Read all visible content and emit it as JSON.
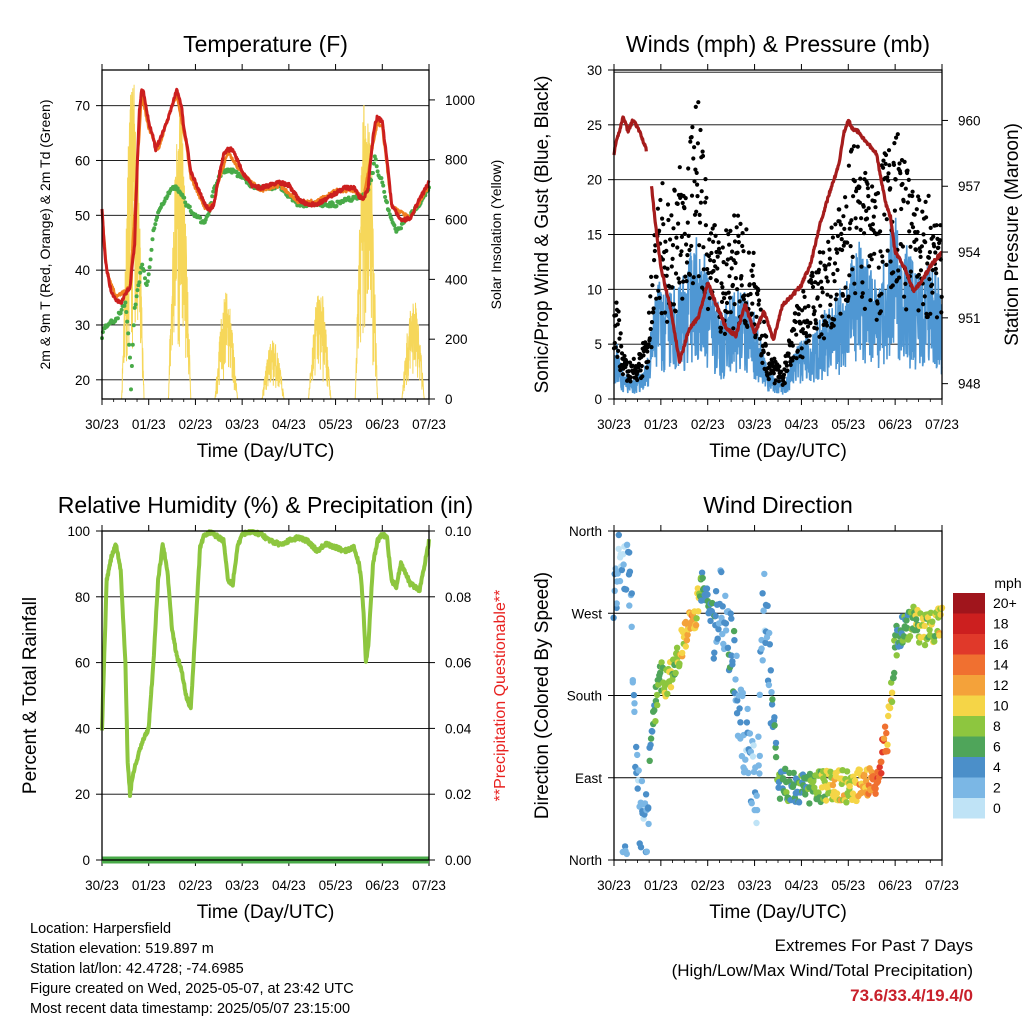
{
  "chart_data": [
    {
      "type": "line",
      "title": "Temperature (F)",
      "xlabel": "Time (Day/UTC)",
      "ylabel": "2m & 9m T (Red, Orange) & 2m Td (Green)",
      "ylabel_right": "Solar Insolation (Yellow)",
      "ylim": [
        16.5,
        76.5
      ],
      "ylim_right": [
        0,
        1100
      ],
      "yticks": [
        20,
        30,
        40,
        50,
        60,
        70
      ],
      "yticks_right": [
        0,
        200,
        400,
        600,
        800,
        1000
      ],
      "xticks": [
        "30/23",
        "01/23",
        "02/23",
        "03/23",
        "04/23",
        "05/23",
        "06/23",
        "07/23"
      ],
      "grid": true,
      "series": [
        {
          "name": "2m T",
          "color": "#cc1f1f",
          "x": [
            0,
            0.05,
            0.1,
            0.2,
            0.3,
            0.4,
            0.6,
            0.7,
            0.75,
            0.8,
            0.85,
            0.9,
            1.0,
            1.1,
            1.15,
            1.2,
            1.35,
            1.5,
            1.6,
            1.7,
            1.75,
            1.8,
            1.85,
            1.9,
            2.0,
            2.1,
            2.2,
            2.3,
            2.4,
            2.5,
            2.6,
            2.7,
            2.8,
            2.9,
            3.0,
            3.2,
            3.4,
            3.6,
            3.8,
            4.0,
            4.2,
            4.4,
            4.6,
            4.8,
            5.0,
            5.2,
            5.4,
            5.5,
            5.6,
            5.7,
            5.75,
            5.8,
            5.85,
            5.9,
            6.0,
            6.1,
            6.2,
            6.4,
            6.6,
            6.8,
            7.0
          ],
          "values": [
            51.5,
            44,
            40,
            36,
            34.5,
            34,
            37,
            45,
            58,
            69,
            73,
            72,
            67,
            64,
            62,
            63,
            66,
            70,
            73,
            70,
            66,
            64,
            61,
            58,
            56,
            54,
            52,
            51,
            52,
            57,
            61,
            62,
            62,
            60,
            58,
            55.5,
            55,
            55.5,
            56,
            55.5,
            53,
            52,
            52,
            53,
            54,
            55,
            55,
            53.5,
            53,
            55,
            60,
            64,
            67,
            68,
            67,
            60,
            52,
            49,
            49.5,
            53,
            56
          ]
        },
        {
          "name": "9m T",
          "color": "#f07f20",
          "x": [
            0,
            0.1,
            0.3,
            0.6,
            0.75,
            0.85,
            1.0,
            1.2,
            1.5,
            1.6,
            1.8,
            1.9,
            2.0,
            2.2,
            2.4,
            2.5,
            2.7,
            3.0,
            3.4,
            3.8,
            4.2,
            4.6,
            5.0,
            5.4,
            5.6,
            5.8,
            5.9,
            6.0,
            6.1,
            6.2,
            6.6,
            7.0
          ],
          "values": [
            51,
            40,
            35,
            37,
            58,
            72,
            66,
            62,
            70,
            72,
            63,
            57,
            55,
            51.5,
            52,
            56.5,
            61.5,
            57.5,
            54.5,
            55.5,
            52.5,
            52.5,
            54.5,
            54.5,
            53,
            63,
            67,
            66,
            59,
            51.5,
            49.5,
            55.5
          ]
        },
        {
          "name": "2m Td",
          "color": "#48aa48",
          "x": [
            0,
            0.05,
            0.1,
            0.3,
            0.5,
            0.55,
            0.6,
            0.62,
            0.65,
            0.7,
            0.8,
            0.85,
            0.9,
            0.95,
            1.0,
            1.05,
            1.1,
            1.2,
            1.3,
            1.4,
            1.5,
            1.6,
            1.7,
            1.8,
            1.9,
            2.0,
            2.2,
            2.3,
            2.4,
            2.5,
            2.6,
            2.8,
            3.0,
            3.2,
            3.4,
            3.6,
            3.8,
            4.0,
            4.2,
            4.4,
            4.6,
            4.8,
            5.0,
            5.2,
            5.4,
            5.6,
            5.7,
            5.8,
            5.85,
            5.9,
            6.0,
            6.1,
            6.2,
            6.3,
            6.4,
            6.6,
            6.8,
            7.0
          ],
          "values": [
            28,
            29.5,
            30,
            31,
            34,
            30,
            24,
            18,
            25,
            33,
            38,
            41,
            40,
            37,
            39,
            43,
            47,
            50.5,
            52,
            53.5,
            55,
            55,
            54,
            52,
            51,
            50,
            48.5,
            51,
            55,
            57,
            58,
            58,
            57,
            55.5,
            55,
            55,
            55.5,
            53.5,
            52,
            52,
            52,
            52,
            52,
            53,
            53,
            53.5,
            55,
            58,
            61,
            58,
            56,
            52,
            49,
            47,
            48,
            50,
            52,
            55
          ]
        },
        {
          "name": "Solar Insolation",
          "color": "#f6d75a",
          "axis": "right",
          "days": [
            0,
            1,
            2,
            3,
            4,
            5,
            6
          ],
          "peaks": [
            1070,
            970,
            360,
            200,
            380,
            1070,
            350
          ]
        }
      ]
    },
    {
      "type": "scatter",
      "title": "Winds (mph) & Pressure (mb)",
      "xlabel": "Time (Day/UTC)",
      "ylabel": "Sonic/Prop Wind & Gust (Blue, Black)",
      "ylabel_right": "Station Pressure (Maroon)",
      "ylim": [
        0,
        30
      ],
      "ylim_right": [
        947.3,
        962.3
      ],
      "yticks": [
        0,
        5,
        10,
        15,
        20,
        25,
        30
      ],
      "yticks_right": [
        948,
        951,
        954,
        957,
        960
      ],
      "xticks": [
        "30/23",
        "01/23",
        "02/23",
        "03/23",
        "04/23",
        "05/23",
        "06/23",
        "07/23"
      ],
      "grid": true,
      "series": [
        {
          "name": "Gust",
          "color": "#000000",
          "x": [
            0,
            0.2,
            0.4,
            0.7,
            0.9,
            1.0,
            1.2,
            1.5,
            1.8,
            2.0,
            2.3,
            2.6,
            2.8,
            3.0,
            3.3,
            3.6,
            3.9,
            4.2,
            4.5,
            4.8,
            5.0,
            5.2,
            5.4,
            5.6,
            5.8,
            6.0,
            6.3,
            6.6,
            6.8,
            7.0
          ],
          "values": [
            8,
            3,
            2.5,
            4,
            12,
            14,
            12,
            16,
            19,
            13,
            10,
            12,
            11,
            9,
            3,
            2,
            6,
            8,
            10,
            12,
            15,
            17,
            14,
            13,
            16,
            18,
            14,
            12,
            14,
            12
          ]
        },
        {
          "name": "Wind",
          "color": "#4f97d3",
          "x": [
            0,
            0.2,
            0.4,
            0.7,
            0.9,
            1.0,
            1.2,
            1.5,
            1.8,
            2.0,
            2.3,
            2.6,
            2.8,
            3.0,
            3.3,
            3.6,
            3.9,
            4.2,
            4.5,
            4.8,
            5.0,
            5.2,
            5.4,
            5.6,
            5.8,
            6.0,
            6.3,
            6.6,
            6.8,
            7.0
          ],
          "values": [
            4,
            1.5,
            1.2,
            2,
            6,
            7,
            6,
            7,
            10,
            7,
            5,
            6,
            6,
            5,
            1.5,
            1,
            3,
            4,
            5,
            6,
            7,
            9,
            8,
            7,
            9,
            11,
            8,
            7,
            8,
            6
          ]
        },
        {
          "name": "Pressure",
          "color": "#a51c1c",
          "axis": "right",
          "x": [
            0,
            0.05,
            0.2,
            0.3,
            0.4,
            0.5,
            0.6,
            0.7,
            0.72,
            0.8,
            0.9,
            1.0,
            1.2,
            1.4,
            1.6,
            1.8,
            2.0,
            2.2,
            2.4,
            2.6,
            2.8,
            3.0,
            3.2,
            3.4,
            3.6,
            3.8,
            4.0,
            4.2,
            4.4,
            4.6,
            4.8,
            4.9,
            5.0,
            5.1,
            5.2,
            5.4,
            5.6,
            5.7,
            5.8,
            5.9,
            6.0,
            6.2,
            6.4,
            6.6,
            6.8,
            7.0
          ],
          "values": [
            958.5,
            959,
            960.2,
            959.5,
            960,
            959.7,
            959.2,
            958.6,
            null,
            957,
            955,
            953.3,
            951.5,
            949,
            950.5,
            951,
            952.6,
            951.5,
            950.5,
            950.2,
            951.6,
            950.3,
            951.3,
            950,
            951.6,
            952,
            952.5,
            953.5,
            955.3,
            956.7,
            958,
            959.4,
            960,
            959.6,
            959.5,
            959,
            958.5,
            957.3,
            956.2,
            955.6,
            954,
            953.3,
            952.2,
            952.8,
            953.5,
            954
          ]
        }
      ]
    },
    {
      "type": "line",
      "title": "Relative Humidity (%) & Precipitation (in)",
      "xlabel": "Time (Day/UTC)",
      "ylabel": "Percent & Total Rainfall",
      "ylabel_right": "**Precipitation Questionable**",
      "ylim": [
        0,
        100
      ],
      "ylim_right": [
        0,
        0.1
      ],
      "yticks": [
        0,
        20,
        40,
        60,
        80,
        100
      ],
      "yticks_right": [
        "0.00",
        "0.02",
        "0.04",
        "0.06",
        "0.08",
        "0.10"
      ],
      "xticks": [
        "30/23",
        "01/23",
        "02/23",
        "03/23",
        "04/23",
        "05/23",
        "06/23",
        "07/23"
      ],
      "grid": true,
      "series": [
        {
          "name": "Relative Humidity",
          "color": "#8dc63f",
          "x": [
            0,
            0.1,
            0.2,
            0.3,
            0.4,
            0.5,
            0.55,
            0.6,
            0.65,
            0.7,
            0.8,
            0.9,
            1.0,
            1.1,
            1.2,
            1.3,
            1.4,
            1.5,
            1.6,
            1.7,
            1.8,
            1.9,
            2.0,
            2.1,
            2.2,
            2.3,
            2.4,
            2.5,
            2.6,
            2.7,
            2.8,
            2.9,
            3.0,
            3.2,
            3.4,
            3.6,
            3.8,
            4.0,
            4.2,
            4.4,
            4.6,
            4.8,
            5.0,
            5.2,
            5.4,
            5.5,
            5.55,
            5.6,
            5.65,
            5.7,
            5.8,
            5.9,
            6.0,
            6.1,
            6.2,
            6.3,
            6.4,
            6.6,
            6.8,
            7.0
          ],
          "values": [
            40,
            85,
            92,
            96,
            88,
            60,
            30,
            20,
            25,
            28,
            33,
            37,
            40,
            60,
            85,
            96,
            88,
            70,
            62,
            58,
            50,
            46,
            70,
            95,
            99,
            99.5,
            99,
            98,
            97,
            85,
            84,
            95,
            99,
            100,
            99,
            97,
            96,
            97,
            98,
            97,
            94,
            96,
            95,
            94,
            95,
            90,
            85,
            75,
            60,
            65,
            90,
            97,
            99,
            98,
            85,
            83,
            90,
            84,
            82,
            97
          ]
        },
        {
          "name": "Total Rainfall",
          "color": "#48aa48",
          "axis": "right",
          "x": [
            0,
            7
          ],
          "values": [
            0,
            0
          ]
        }
      ]
    },
    {
      "type": "scatter",
      "title": "Wind Direction",
      "xlabel": "Time (Day/UTC)",
      "ylabel": "Direction (Colored By Speed)",
      "ylim": [
        0,
        360
      ],
      "yticks": [
        "North",
        "East",
        "South",
        "West",
        "North"
      ],
      "xticks": [
        "30/23",
        "01/23",
        "02/23",
        "03/23",
        "04/23",
        "05/23",
        "06/23",
        "07/23"
      ],
      "colorbar_title": "mph",
      "colorbar_labels": [
        "20+",
        "18",
        "16",
        "14",
        "12",
        "10",
        "8",
        "6",
        "4",
        "2",
        "0"
      ],
      "colorbar_colors": [
        "#a0151c",
        "#cc1f1f",
        "#e0392a",
        "#f07030",
        "#f4a23a",
        "#f5d547",
        "#8dc63f",
        "#4fa55a",
        "#4b8fc9",
        "#7bb7e5",
        "#bfe3f6"
      ],
      "series": [
        {
          "name": "Direction",
          "x": [
            0,
            0.2,
            0.35,
            0.5,
            0.7,
            0.8,
            1.0,
            1.1,
            1.3,
            1.5,
            1.7,
            1.9,
            2.1,
            2.3,
            2.5,
            2.7,
            2.9,
            3.05,
            3.2,
            3.5,
            3.8,
            4.1,
            4.4,
            4.7,
            5.0,
            5.2,
            5.4,
            5.6,
            5.75,
            5.85,
            6.0,
            6.2,
            6.4,
            6.6,
            6.8,
            7.0
          ],
          "values": [
            310,
            340,
            320,
            60,
            30,
            150,
            200,
            190,
            215,
            245,
            265,
            300,
            255,
            280,
            240,
            160,
            110,
            60,
            300,
            85,
            80,
            78,
            80,
            82,
            80,
            82,
            85,
            90,
            120,
            140,
            235,
            255,
            260,
            250,
            255,
            265
          ],
          "speeds": [
            3,
            2,
            3,
            3,
            2,
            5,
            8,
            9,
            8,
            10,
            12,
            5,
            4,
            3,
            4,
            3,
            2,
            2,
            2,
            6,
            5,
            6,
            8,
            10,
            9,
            11,
            12,
            14,
            15,
            12,
            5,
            6,
            8,
            9,
            8,
            10
          ]
        }
      ]
    }
  ],
  "info": {
    "location": "Location: Harpersfield",
    "elevation": "Station elevation: 519.897 m",
    "latlon": "Station lat/lon: 42.4728; -74.6985",
    "created": "Figure created on Wed, 2025-05-07, at 23:42 UTC",
    "recent": "Most recent data timestamp: 2025/05/07 23:15:00"
  },
  "extremes": {
    "line1": "Extremes For Past 7 Days",
    "line2": "(High/Low/Max Wind/Total Precipitation)",
    "values": "73.6/33.4/19.4/0",
    "values_color": "#c8202b"
  }
}
